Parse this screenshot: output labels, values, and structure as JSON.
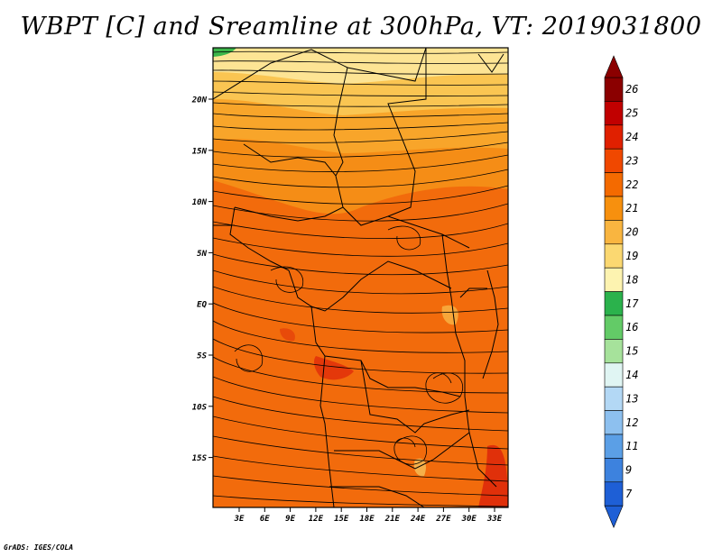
{
  "title": "WBPT [C] and Sreamline at 300hPa, VT: 2019031800",
  "credit": "GrADS: IGES/COLA",
  "map": {
    "lat_ticks": [
      "20N",
      "15N",
      "10N",
      "5N",
      "EQ",
      "5S",
      "10S",
      "15S"
    ],
    "lon_ticks": [
      "3E",
      "6E",
      "9E",
      "12E",
      "15E",
      "18E",
      "21E",
      "24E",
      "27E",
      "30E",
      "33E"
    ]
  },
  "colorbar": {
    "labels": [
      "26",
      "25",
      "24",
      "23",
      "22",
      "21",
      "20",
      "19",
      "18",
      "17",
      "16",
      "15",
      "14",
      "13",
      "12",
      "11",
      "9",
      "7"
    ],
    "colors": [
      "#8b0000",
      "#c10000",
      "#e02000",
      "#f04800",
      "#f46a00",
      "#f7900e",
      "#f9b540",
      "#fbd871",
      "#fdf3b0",
      "#2bb24c",
      "#63cb67",
      "#a6e29b",
      "#e0f5f3",
      "#b3d8f5",
      "#8dc0ef",
      "#5b9fe6",
      "#3d82de",
      "#1e5fd6"
    ]
  }
}
